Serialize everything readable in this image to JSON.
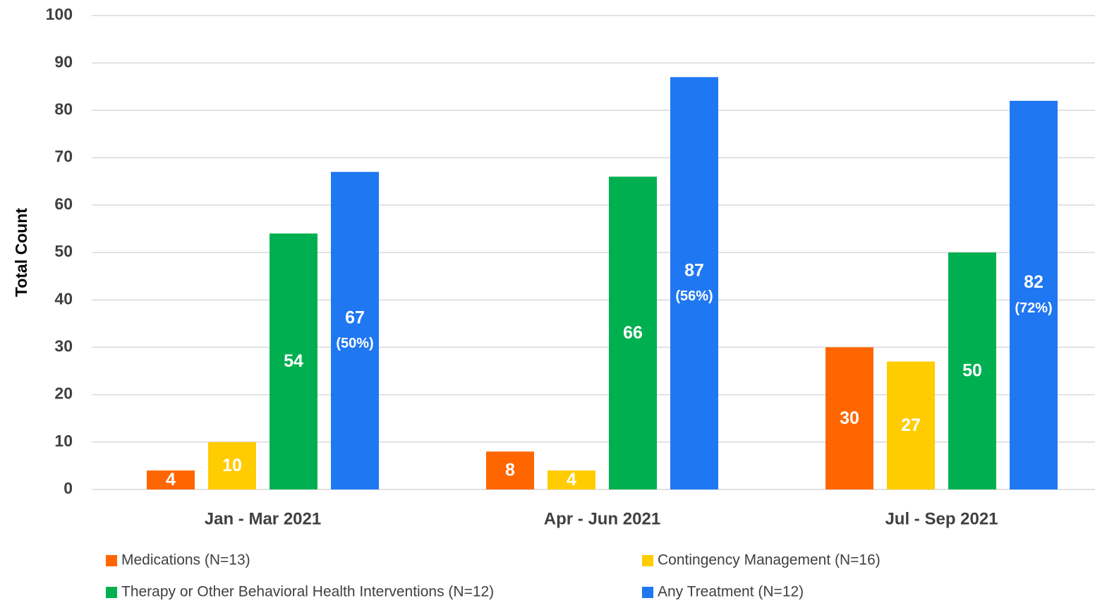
{
  "chart_data": {
    "type": "bar",
    "y_label": "Total Count",
    "categories": [
      "Jan - Mar 2021",
      "Apr - Jun 2021",
      "Jul - Sep 2021"
    ],
    "series": [
      {
        "name": "Medications (N=13)",
        "color": "#ff6600",
        "values": [
          4,
          8,
          30
        ]
      },
      {
        "name": "Contingency Management (N=16)",
        "color": "#ffcc00",
        "values": [
          10,
          4,
          27
        ]
      },
      {
        "name": "Therapy or Other Behavioral Health Interventions (N=12)",
        "color": "#00b050",
        "values": [
          54,
          66,
          50
        ]
      },
      {
        "name": "Any Treatment (N=12)",
        "color": "#1f77f2",
        "values": [
          67,
          87,
          82
        ],
        "percent_labels": [
          "(50%)",
          "(56%)",
          "(72%)"
        ]
      }
    ],
    "ylim": [
      0,
      100
    ],
    "yticks": [
      0,
      10,
      20,
      30,
      40,
      50,
      60,
      70,
      80,
      90,
      100
    ],
    "grid": true,
    "legend": "bottom"
  }
}
